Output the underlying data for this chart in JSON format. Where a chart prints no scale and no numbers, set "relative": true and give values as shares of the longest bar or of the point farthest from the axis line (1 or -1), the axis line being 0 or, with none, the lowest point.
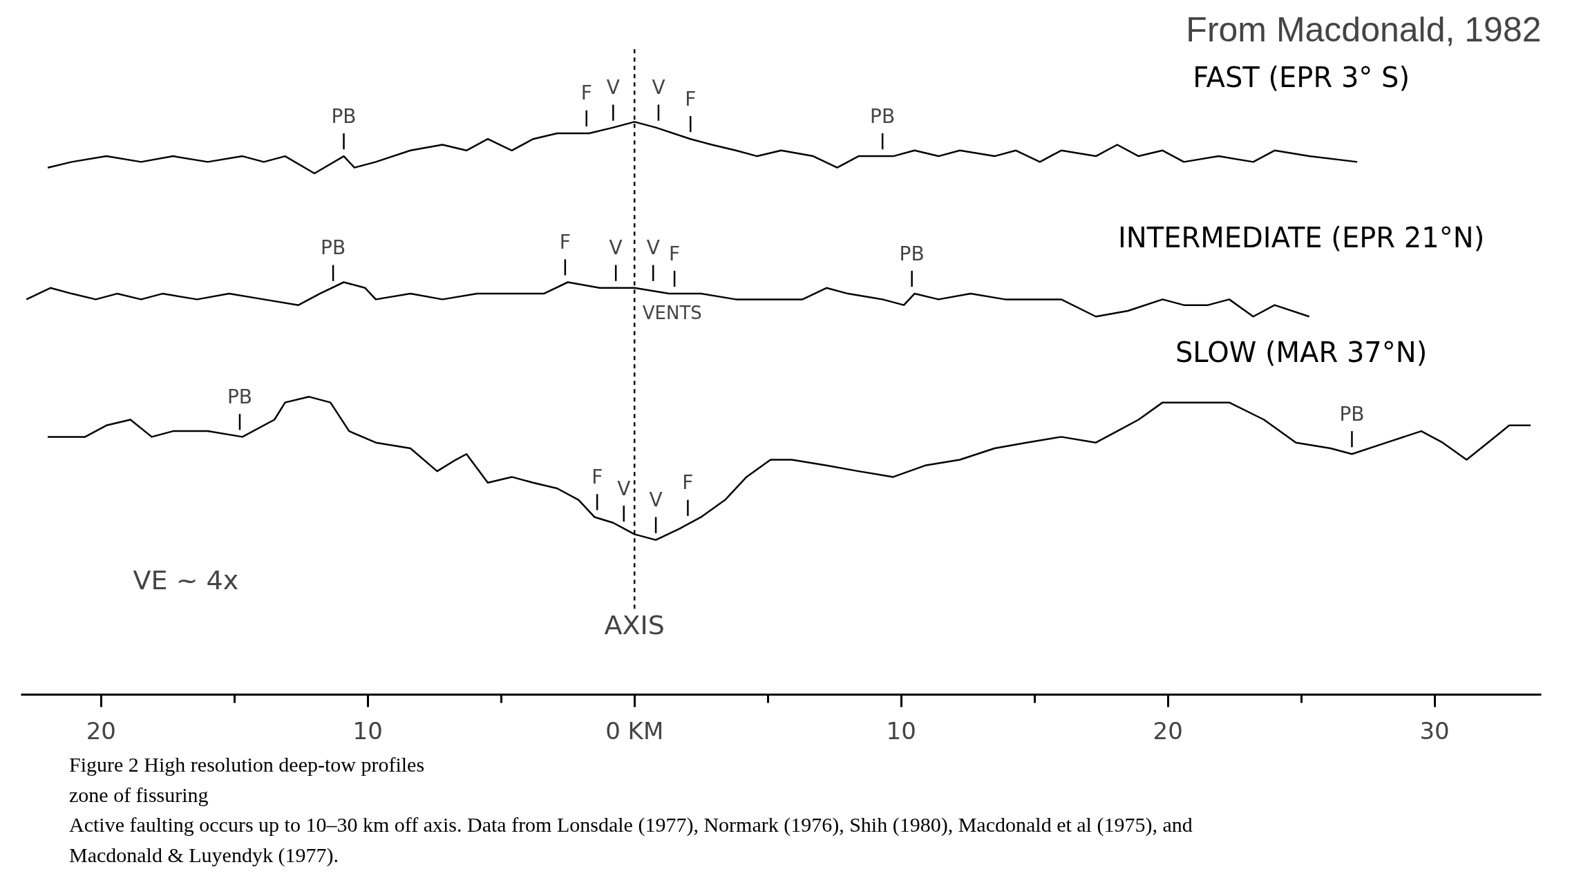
{
  "chart_data": {
    "type": "line",
    "relative": true,
    "grid": false,
    "legend": false,
    "marker": "none",
    "line_style": "solid",
    "xlim": [
      -23,
      34
    ],
    "xticks": [
      {
        "value": -20,
        "label": "20"
      },
      {
        "value": -15,
        "label": null
      },
      {
        "value": -10,
        "label": "10"
      },
      {
        "value": -5,
        "label": null
      },
      {
        "value": 0,
        "label": "0 KM"
      },
      {
        "value": 5,
        "label": null
      },
      {
        "value": 10,
        "label": "10"
      },
      {
        "value": 15,
        "label": null
      },
      {
        "value": 20,
        "label": "20"
      },
      {
        "value": 25,
        "label": null
      },
      {
        "value": 30,
        "label": "30"
      }
    ],
    "series": [
      {
        "name": "FAST (EPR 3° S)",
        "color": "#000000",
        "x": [
          -22.0,
          -21.1,
          -19.8,
          -18.5,
          -17.3,
          -16.0,
          -14.7,
          -13.9,
          -13.1,
          -12.0,
          -10.9,
          -10.5,
          -9.7,
          -8.4,
          -7.2,
          -6.3,
          -5.5,
          -4.6,
          -3.8,
          -2.9,
          -1.7,
          -0.8,
          0,
          0.8,
          2.1,
          2.9,
          3.8,
          4.6,
          5.5,
          6.7,
          7.6,
          8.4,
          9.7,
          10.5,
          11.4,
          12.2,
          13.5,
          14.3,
          15.2,
          16.0,
          17.3,
          18.1,
          18.9,
          19.8,
          20.6,
          21.9,
          23.2,
          24.0,
          25.3,
          27.1
        ],
        "values": [
          0.92,
          0.93,
          0.94,
          0.93,
          0.94,
          0.93,
          0.94,
          0.93,
          0.94,
          0.91,
          0.94,
          0.92,
          0.93,
          0.95,
          0.96,
          0.95,
          0.97,
          0.95,
          0.97,
          0.98,
          0.98,
          0.99,
          1.0,
          0.99,
          0.97,
          0.96,
          0.95,
          0.94,
          0.95,
          0.94,
          0.92,
          0.94,
          0.94,
          0.95,
          0.94,
          0.95,
          0.94,
          0.95,
          0.93,
          0.95,
          0.94,
          0.96,
          0.94,
          0.95,
          0.93,
          0.94,
          0.93,
          0.95,
          0.94,
          0.93
        ]
      },
      {
        "name": "INTERMEDIATE (EPR 21°N)",
        "color": "#000000",
        "x": [
          -22.8,
          -21.9,
          -21.1,
          -20.2,
          -19.4,
          -18.5,
          -17.7,
          -16.4,
          -15.2,
          -13.9,
          -12.6,
          -11.8,
          -10.9,
          -10.1,
          -9.7,
          -8.4,
          -7.2,
          -5.9,
          -4.6,
          -3.4,
          -2.5,
          -1.3,
          0,
          1.3,
          2.5,
          3.8,
          5.1,
          6.3,
          7.2,
          8.0,
          9.3,
          10.1,
          10.5,
          11.4,
          12.6,
          13.9,
          15.2,
          16.0,
          17.3,
          18.5,
          19.8,
          20.6,
          21.5,
          22.3,
          23.2,
          24.0,
          25.3
        ],
        "values": [
          0.69,
          0.71,
          0.7,
          0.69,
          0.7,
          0.69,
          0.7,
          0.69,
          0.7,
          0.69,
          0.68,
          0.7,
          0.72,
          0.71,
          0.69,
          0.7,
          0.69,
          0.7,
          0.7,
          0.7,
          0.72,
          0.71,
          0.71,
          0.7,
          0.7,
          0.69,
          0.69,
          0.69,
          0.71,
          0.7,
          0.69,
          0.68,
          0.7,
          0.69,
          0.7,
          0.69,
          0.69,
          0.69,
          0.66,
          0.67,
          0.69,
          0.68,
          0.68,
          0.69,
          0.66,
          0.68,
          0.66
        ]
      },
      {
        "name": "SLOW (MAR 37°N)",
        "color": "#000000",
        "x": [
          -22.0,
          -20.6,
          -19.8,
          -18.9,
          -18.1,
          -17.3,
          -16.0,
          -14.7,
          -13.5,
          -13.1,
          -12.2,
          -11.4,
          -10.7,
          -9.7,
          -8.4,
          -7.4,
          -6.7,
          -6.3,
          -5.5,
          -4.6,
          -3.8,
          -2.9,
          -2.1,
          -1.5,
          -0.8,
          0,
          0.8,
          1.7,
          2.5,
          3.4,
          4.2,
          5.1,
          5.9,
          7.2,
          8.4,
          9.7,
          10.9,
          12.2,
          13.5,
          14.7,
          16.0,
          17.3,
          18.1,
          18.9,
          19.8,
          21.1,
          22.3,
          23.6,
          24.8,
          26.1,
          26.9,
          28.2,
          29.5,
          30.3,
          31.2,
          32.0,
          32.8,
          33.6
        ],
        "values": [
          0.45,
          0.45,
          0.47,
          0.48,
          0.45,
          0.46,
          0.46,
          0.45,
          0.48,
          0.51,
          0.52,
          0.51,
          0.46,
          0.44,
          0.43,
          0.39,
          0.41,
          0.42,
          0.37,
          0.38,
          0.37,
          0.36,
          0.34,
          0.31,
          0.3,
          0.28,
          0.27,
          0.29,
          0.31,
          0.34,
          0.38,
          0.41,
          0.41,
          0.4,
          0.39,
          0.38,
          0.4,
          0.41,
          0.43,
          0.44,
          0.45,
          0.44,
          0.46,
          0.48,
          0.51,
          0.51,
          0.51,
          0.48,
          0.44,
          0.43,
          0.42,
          0.44,
          0.46,
          0.44,
          0.41,
          0.44,
          0.47,
          0.47
        ]
      }
    ],
    "ref_lines": [
      {
        "axis": "x",
        "value": 0,
        "label": "AXIS",
        "line_style": "dashed"
      }
    ],
    "annotations": [
      "From Macdonald, 1982",
      "VE ~ 4x",
      "Figure 2    High resolution deep-tow profiles",
      "zone of fissuring",
      "Active faulting occurs up to 10–30 km off axis. Data from Lonsdale (1977), Normark (1976), Shih (1980), Macdonald et al (1975), and",
      "Macdonald & Luyendyk (1977).",
      {
        "text": "PB",
        "x": -10.9,
        "y": 0.94
      },
      {
        "text": "F",
        "x": -1.8,
        "y": 0.98
      },
      {
        "text": "V",
        "x": -0.8,
        "y": 0.99
      },
      {
        "text": "V",
        "x": 0.9,
        "y": 0.99
      },
      {
        "text": "F",
        "x": 2.1,
        "y": 0.97
      },
      {
        "text": "PB",
        "x": 9.3,
        "y": 0.94
      },
      {
        "text": "PB",
        "x": -11.3,
        "y": 0.71
      },
      {
        "text": "F",
        "x": -2.6,
        "y": 0.72
      },
      {
        "text": "V",
        "x": -0.7,
        "y": 0.71
      },
      {
        "text": "VENTS",
        "x": 0,
        "y": 0.71
      },
      {
        "text": "V",
        "x": 0.7,
        "y": 0.71
      },
      {
        "text": "F",
        "x": 1.5,
        "y": 0.7
      },
      {
        "text": "PB",
        "x": 10.4,
        "y": 0.7
      },
      {
        "text": "PB",
        "x": -14.8,
        "y": 0.45
      },
      {
        "text": "F",
        "x": -1.4,
        "y": 0.31
      },
      {
        "text": "V",
        "x": -0.4,
        "y": 0.29
      },
      {
        "text": "V",
        "x": 0.8,
        "y": 0.27
      },
      {
        "text": "F",
        "x": 2.0,
        "y": 0.3
      },
      {
        "text": "PB",
        "x": 26.9,
        "y": 0.42
      }
    ]
  }
}
